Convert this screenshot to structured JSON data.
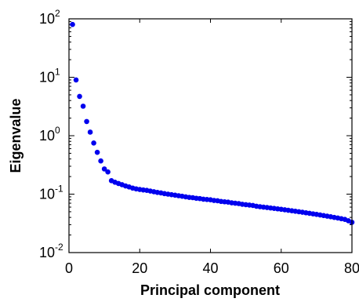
{
  "chart_data": {
    "type": "scatter",
    "title": "",
    "xlabel": "Principal component",
    "ylabel": "Eigenvalue",
    "xlim": [
      0,
      80
    ],
    "ylim": [
      0.01,
      100
    ],
    "yscale": "log",
    "grid": false,
    "marker_color": "#0000ee",
    "x_ticks": [
      "0",
      "20",
      "40",
      "60",
      "80"
    ],
    "y_ticks": [
      {
        "base": "10",
        "exp": "-2"
      },
      {
        "base": "10",
        "exp": "-1"
      },
      {
        "base": "10",
        "exp": "0"
      },
      {
        "base": "10",
        "exp": "1"
      },
      {
        "base": "10",
        "exp": "2"
      }
    ],
    "x": [
      1,
      2,
      3,
      4,
      5,
      6,
      7,
      8,
      9,
      10,
      11,
      12,
      13,
      14,
      15,
      16,
      17,
      18,
      19,
      20,
      21,
      22,
      23,
      24,
      25,
      26,
      27,
      28,
      29,
      30,
      31,
      32,
      33,
      34,
      35,
      36,
      37,
      38,
      39,
      40,
      41,
      42,
      43,
      44,
      45,
      46,
      47,
      48,
      49,
      50,
      51,
      52,
      53,
      54,
      55,
      56,
      57,
      58,
      59,
      60,
      61,
      62,
      63,
      64,
      65,
      66,
      67,
      68,
      69,
      70,
      71,
      72,
      73,
      74,
      75,
      76,
      77,
      78,
      79,
      80
    ],
    "y": [
      80,
      9,
      4.7,
      3.2,
      1.75,
      1.15,
      0.75,
      0.52,
      0.37,
      0.27,
      0.24,
      0.17,
      0.16,
      0.152,
      0.145,
      0.138,
      0.133,
      0.127,
      0.123,
      0.12,
      0.118,
      0.116,
      0.113,
      0.11,
      0.107,
      0.105,
      0.102,
      0.1,
      0.098,
      0.096,
      0.094,
      0.092,
      0.09,
      0.088,
      0.087,
      0.085,
      0.084,
      0.082,
      0.081,
      0.08,
      0.078,
      0.077,
      0.075,
      0.074,
      0.073,
      0.071,
      0.07,
      0.069,
      0.067,
      0.066,
      0.065,
      0.064,
      0.062,
      0.061,
      0.06,
      0.059,
      0.058,
      0.057,
      0.056,
      0.055,
      0.054,
      0.053,
      0.052,
      0.051,
      0.05,
      0.049,
      0.048,
      0.047,
      0.046,
      0.045,
      0.044,
      0.043,
      0.042,
      0.041,
      0.04,
      0.039,
      0.038,
      0.037,
      0.035,
      0.033
    ]
  }
}
